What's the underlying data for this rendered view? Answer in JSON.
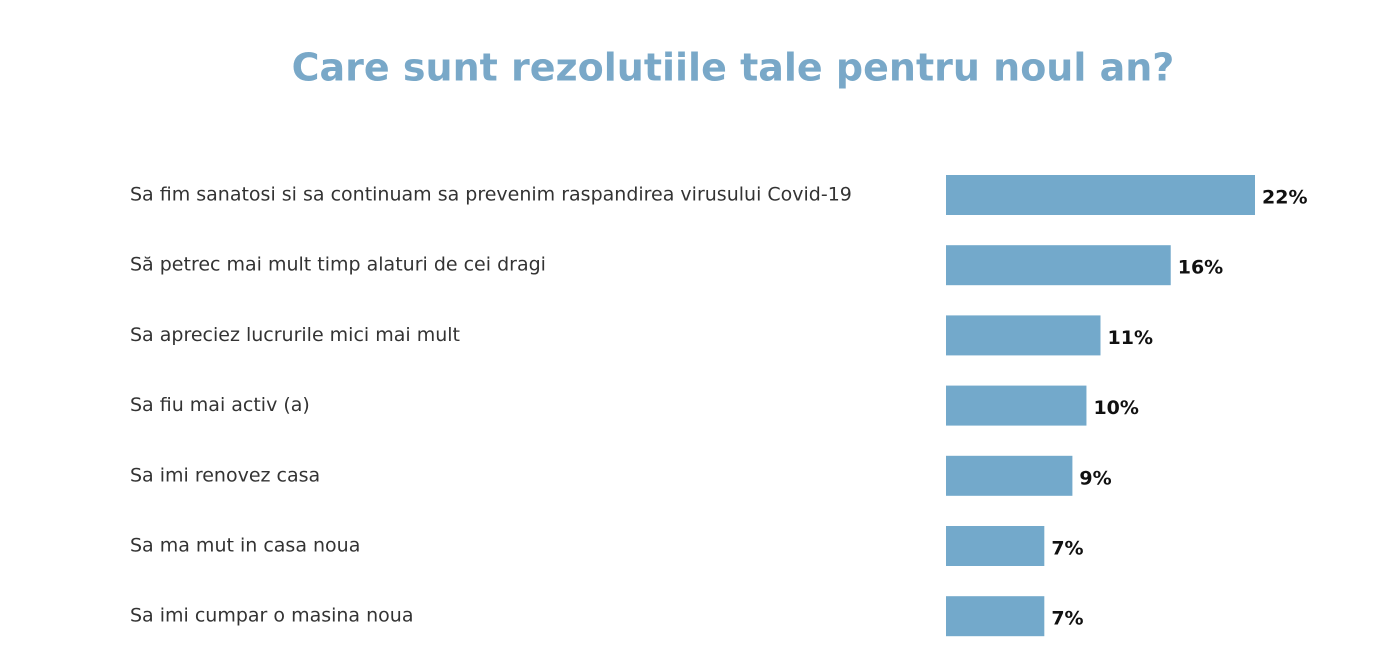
{
  "chart_data": {
    "type": "hbar",
    "title": "Care sunt rezolutiile tale pentru noul an?",
    "categories": [
      "Sa fim sanatosi si sa continuam sa prevenim raspandirea virusului Covid-19",
      "Să petrec mai mult timp alaturi de cei dragi",
      "Sa apreciez lucrurile mici mai mult",
      "Sa fiu mai activ (a)",
      "Sa imi renovez casa",
      "Sa ma mut in casa noua",
      "Sa imi cumpar o masina noua"
    ],
    "values": [
      22,
      16,
      11,
      10,
      9,
      7,
      7
    ],
    "value_labels": [
      "22%",
      "16%",
      "11%",
      "10%",
      "9%",
      "7%",
      "7%"
    ],
    "color": "#73a9cb"
  }
}
